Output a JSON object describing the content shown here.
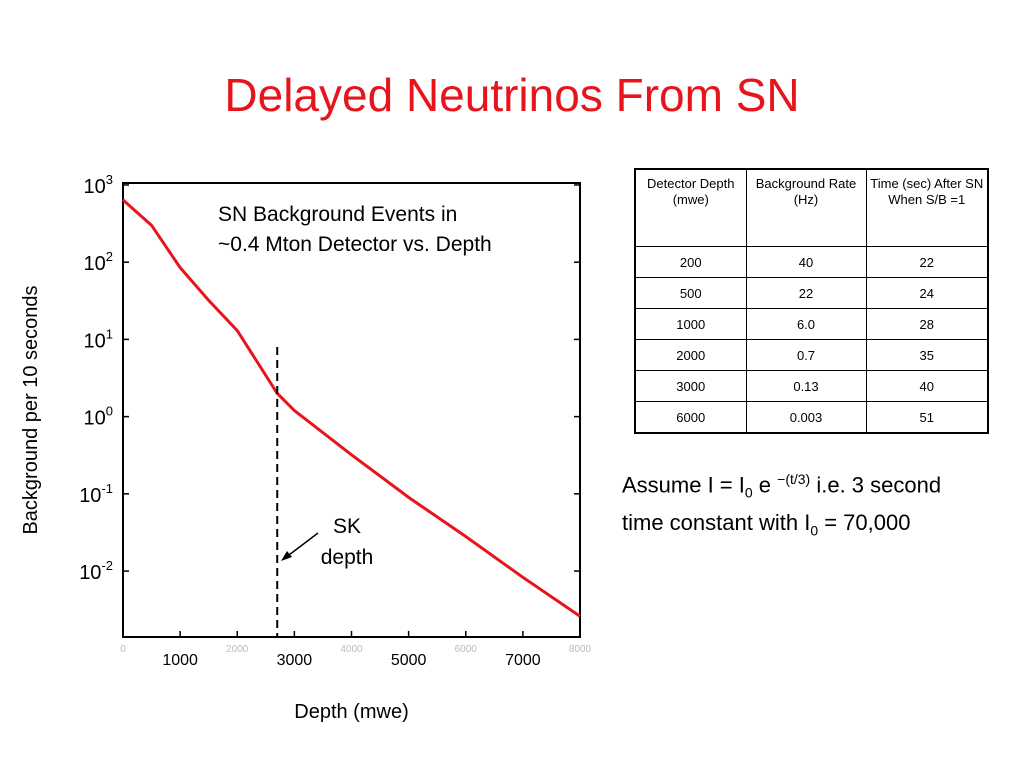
{
  "slide_title": "Delayed Neutrinos From SN",
  "chart_data": {
    "type": "line",
    "annotation": "SN Background Events in ~0.4 Mton Detector vs. Depth",
    "x_label": "Depth (mwe)",
    "y_label": "Background per 10 seconds",
    "x": [
      0,
      500,
      1000,
      1500,
      2000,
      2700,
      3000,
      4000,
      5000,
      6000,
      7000,
      8000
    ],
    "series": [
      {
        "name": "SN background",
        "color": "#e8141c",
        "values": [
          640,
          300,
          85,
          32,
          13,
          2,
          1.2,
          0.32,
          0.09,
          0.028,
          0.0083,
          0.0026
        ]
      }
    ],
    "xlim": [
      0,
      8000
    ],
    "xticks": [
      0,
      1000,
      2000,
      3000,
      4000,
      5000,
      6000,
      7000,
      8000
    ],
    "ylim": [
      0.0014,
      1060
    ],
    "log_y": true,
    "yticks": [
      {
        "value": 1000,
        "label": "10",
        "exponent": "3"
      },
      {
        "value": 100,
        "label": "10",
        "exponent": "2"
      },
      {
        "value": 10,
        "label": "10",
        "exponent": "1"
      },
      {
        "value": 1,
        "label": "10",
        "exponent": "0"
      },
      {
        "value": 0.1,
        "label": "10",
        "exponent": "-1"
      },
      {
        "value": 0.01,
        "label": "10",
        "exponent": "-2"
      }
    ],
    "marker_line": {
      "x": 2700,
      "label": [
        "SK",
        "depth"
      ]
    }
  },
  "table": {
    "header": [
      "Detector Depth (mwe)",
      "Background Rate (Hz)",
      "Time (sec) After SN When S/B =1"
    ],
    "rows": [
      [
        "200",
        "40",
        "22"
      ],
      [
        "500",
        "22",
        "24"
      ],
      [
        "1000",
        "6.0",
        "28"
      ],
      [
        "2000",
        "0.7",
        "35"
      ],
      [
        "3000",
        "0.13",
        "40"
      ],
      [
        "6000",
        "0.003",
        "51"
      ]
    ]
  },
  "note": {
    "parts": [
      "Assume I = I",
      "0",
      " e ",
      "−(t/3)",
      " i.e. 3 second",
      "time constant with I",
      "0",
      " = 70,000"
    ]
  }
}
